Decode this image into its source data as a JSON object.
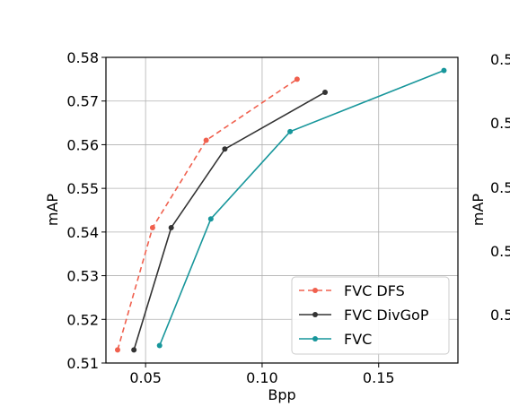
{
  "chart_data": [
    {
      "type": "line",
      "xlabel": "Bpp",
      "ylabel": "mAP",
      "xlim": [
        0.033,
        0.184
      ],
      "ylim": [
        0.51,
        0.58
      ],
      "x_ticks": [
        0.05,
        0.1,
        0.15
      ],
      "x_tick_labels": [
        "0.05",
        "0.10",
        "0.15"
      ],
      "y_ticks": [
        0.51,
        0.52,
        0.53,
        0.54,
        0.55,
        0.56,
        0.57,
        0.58
      ],
      "y_tick_labels": [
        "0.51",
        "0.52",
        "0.53",
        "0.54",
        "0.55",
        "0.56",
        "0.57",
        "0.58"
      ],
      "grid": true,
      "legend_position": "lower-right",
      "series": [
        {
          "name": "FVC DFS",
          "color": "#f0604e",
          "dash": "dashed",
          "x": [
            0.038,
            0.053,
            0.076,
            0.115
          ],
          "y": [
            0.513,
            0.541,
            0.561,
            0.575
          ]
        },
        {
          "name": "FVC DivGoP",
          "color": "#333333",
          "dash": "solid",
          "x": [
            0.045,
            0.061,
            0.084,
            0.127
          ],
          "y": [
            0.513,
            0.541,
            0.559,
            0.572
          ]
        },
        {
          "name": "FVC",
          "color": "#17969b",
          "dash": "solid",
          "x": [
            0.056,
            0.078,
            0.112,
            0.178
          ],
          "y": [
            0.514,
            0.543,
            0.563,
            0.577
          ]
        }
      ]
    },
    {
      "type": "line",
      "ylabel": "mAP",
      "y_tick_labels": [
        "0.5",
        "0.5",
        "0.5",
        "0.5",
        "0.5"
      ]
    }
  ]
}
